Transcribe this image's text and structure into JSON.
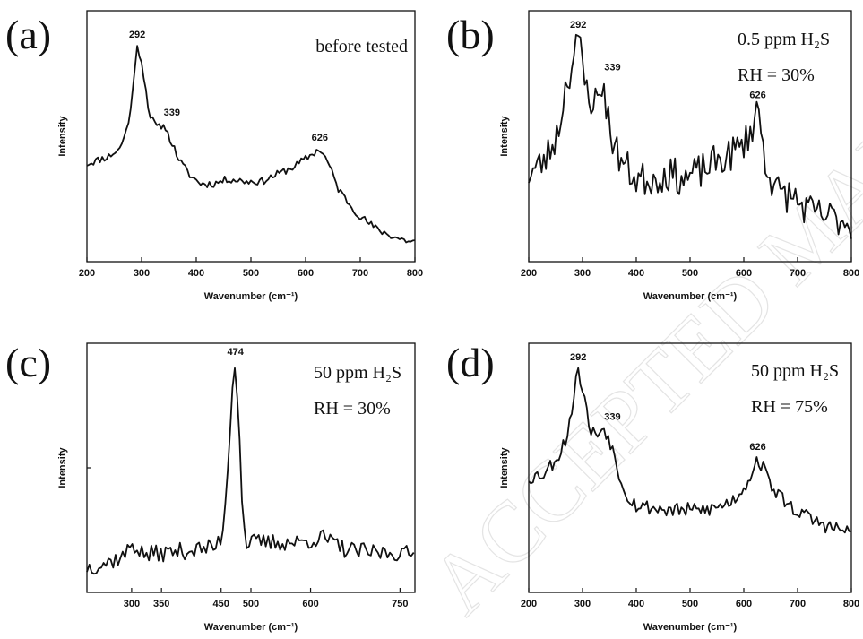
{
  "watermark": "ACCEPTED MANUSCRIPT",
  "chart_data": [
    {
      "type": "line",
      "panel_label": "(a)",
      "annotation_lines": [
        "before tested"
      ],
      "xlabel": "Wavenumber (cm⁻¹)",
      "ylabel": "Intensity",
      "xlim": [
        200,
        800
      ],
      "xticks": [
        200,
        300,
        400,
        500,
        600,
        700,
        800
      ],
      "xtick_labels": [
        "200",
        "300",
        "400",
        "500",
        "600",
        "700",
        "800"
      ],
      "ylim": [
        0,
        100
      ],
      "yticks": [],
      "peaks": [
        {
          "x": 292,
          "y": 86,
          "label": "292"
        },
        {
          "x": 339,
          "y": 55,
          "label": "339"
        },
        {
          "x": 626,
          "y": 45,
          "label": "626"
        }
      ],
      "noise": 1.5,
      "seed": 11,
      "series": [
        {
          "x": [
            200,
            240,
            260,
            275,
            285,
            292,
            300,
            315,
            330,
            339,
            350,
            370,
            390,
            410,
            430,
            460,
            490,
            520,
            550,
            580,
            600,
            626,
            640,
            660,
            680,
            700,
            730,
            760,
            790,
            800
          ],
          "y": [
            39,
            42,
            45,
            54,
            70,
            86,
            80,
            58,
            53,
            55,
            50,
            40,
            34,
            31,
            31,
            33,
            32,
            32,
            35,
            38,
            41,
            45,
            40,
            29,
            23,
            18,
            13,
            10,
            8,
            8
          ]
        }
      ]
    },
    {
      "type": "line",
      "panel_label": "(b)",
      "annotation_lines": [
        "0.5 ppm H₂S",
        "RH = 30%"
      ],
      "xlabel": "Wavenumber (cm⁻¹)",
      "ylabel": "Intensity",
      "xlim": [
        200,
        800
      ],
      "xticks": [
        200,
        300,
        400,
        500,
        600,
        700,
        800
      ],
      "xtick_labels": [
        "200",
        "300",
        "400",
        "500",
        "600",
        "700",
        "800"
      ],
      "ylim": [
        0,
        100
      ],
      "yticks": [],
      "peaks": [
        {
          "x": 292,
          "y": 90,
          "label": "292"
        },
        {
          "x": 339,
          "y": 73,
          "label": "339"
        },
        {
          "x": 626,
          "y": 62,
          "label": "626"
        }
      ],
      "noise": 7,
      "seed": 23,
      "series": [
        {
          "x": [
            200,
            230,
            255,
            270,
            280,
            292,
            305,
            320,
            335,
            339,
            345,
            360,
            380,
            400,
            430,
            460,
            490,
            520,
            550,
            570,
            590,
            610,
            626,
            640,
            660,
            690,
            720,
            750,
            780,
            800
          ],
          "y": [
            35,
            40,
            52,
            72,
            78,
            90,
            70,
            63,
            67,
            73,
            60,
            45,
            38,
            33,
            33,
            35,
            33,
            36,
            40,
            42,
            45,
            50,
            62,
            40,
            28,
            26,
            20,
            18,
            17,
            15
          ]
        }
      ]
    },
    {
      "type": "line",
      "panel_label": "(c)",
      "annotation_lines": [
        "50 ppm H₂S",
        "RH = 30%"
      ],
      "xlabel": "Wavenumber (cm⁻¹)",
      "ylabel": "Intensity",
      "xlim": [
        225,
        775
      ],
      "xticks": [
        300,
        350,
        450,
        500,
        600,
        750
      ],
      "xtick_labels": [
        "300",
        "350",
        "450",
        "500",
        "600",
        "750"
      ],
      "ylim": [
        0,
        100
      ],
      "yticks": [
        50
      ],
      "peaks": [
        {
          "x": 474,
          "y": 92,
          "label": "474"
        }
      ],
      "noise": 3.5,
      "seed": 37,
      "series": [
        {
          "x": [
            225,
            260,
            290,
            300,
            320,
            360,
            400,
            440,
            452,
            460,
            468,
            474,
            480,
            486,
            492,
            500,
            540,
            580,
            620,
            660,
            700,
            740,
            775
          ],
          "y": [
            10,
            12,
            15,
            20,
            15,
            16,
            17,
            18,
            23,
            45,
            80,
            92,
            70,
            30,
            20,
            20,
            20,
            20,
            22,
            17,
            16,
            16,
            15
          ]
        }
      ]
    },
    {
      "type": "line",
      "panel_label": "(d)",
      "annotation_lines": [
        "50 ppm H₂S",
        "RH = 75%"
      ],
      "xlabel": "Wavenumber (cm⁻¹)",
      "ylabel": "Intensity",
      "xlim": [
        200,
        800
      ],
      "xticks": [
        200,
        300,
        400,
        500,
        600,
        700,
        800
      ],
      "xtick_labels": [
        "200",
        "300",
        "400",
        "500",
        "600",
        "700",
        "800"
      ],
      "ylim": [
        0,
        100
      ],
      "yticks": [],
      "peaks": [
        {
          "x": 292,
          "y": 90,
          "label": "292"
        },
        {
          "x": 339,
          "y": 66,
          "label": "339"
        },
        {
          "x": 626,
          "y": 54,
          "label": "626"
        }
      ],
      "noise": 3,
      "seed": 53,
      "series": [
        {
          "x": [
            200,
            230,
            255,
            270,
            282,
            292,
            302,
            315,
            330,
            339,
            350,
            365,
            380,
            400,
            430,
            460,
            490,
            520,
            550,
            580,
            600,
            615,
            626,
            640,
            660,
            690,
            720,
            750,
            780,
            800
          ],
          "y": [
            46,
            48,
            55,
            62,
            76,
            90,
            80,
            64,
            64,
            66,
            62,
            50,
            40,
            35,
            34,
            33,
            33,
            33,
            34,
            37,
            42,
            48,
            54,
            48,
            40,
            34,
            30,
            27,
            25,
            24
          ]
        }
      ]
    }
  ]
}
